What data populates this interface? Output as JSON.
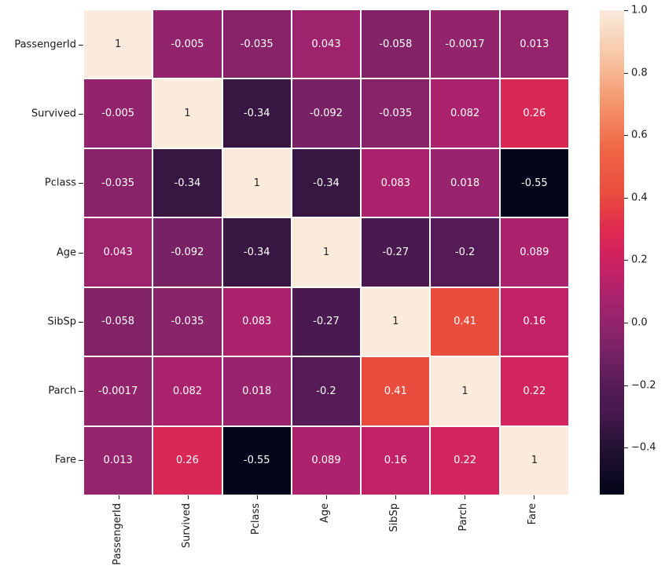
{
  "chart_data": {
    "type": "heatmap",
    "title": "",
    "categories": [
      "PassengerId",
      "Survived",
      "Pclass",
      "Age",
      "SibSp",
      "Parch",
      "Fare"
    ],
    "matrix": [
      [
        1,
        -0.005,
        -0.035,
        0.043,
        -0.058,
        -0.0017,
        0.013
      ],
      [
        -0.005,
        1,
        -0.34,
        -0.092,
        -0.035,
        0.082,
        0.26
      ],
      [
        -0.035,
        -0.34,
        1,
        -0.34,
        0.083,
        0.018,
        -0.55
      ],
      [
        0.043,
        -0.092,
        -0.34,
        1,
        -0.27,
        -0.2,
        0.089
      ],
      [
        -0.058,
        -0.035,
        0.083,
        -0.27,
        1,
        0.41,
        0.16
      ],
      [
        -0.0017,
        0.082,
        0.018,
        -0.2,
        0.41,
        1,
        0.22
      ],
      [
        0.013,
        0.26,
        -0.55,
        0.089,
        0.16,
        0.22,
        1
      ]
    ],
    "cell_labels": [
      [
        "1",
        "-0.005",
        "-0.035",
        "0.043",
        "-0.058",
        "-0.0017",
        "0.013"
      ],
      [
        "-0.005",
        "1",
        "-0.34",
        "-0.092",
        "-0.035",
        "0.082",
        "0.26"
      ],
      [
        "-0.035",
        "-0.34",
        "1",
        "-0.34",
        "0.083",
        "0.018",
        "-0.55"
      ],
      [
        "0.043",
        "-0.092",
        "-0.34",
        "1",
        "-0.27",
        "-0.2",
        "0.089"
      ],
      [
        "-0.058",
        "-0.035",
        "0.083",
        "-0.27",
        "1",
        "0.41",
        "0.16"
      ],
      [
        "-0.0017",
        "0.082",
        "0.018",
        "-0.2",
        "0.41",
        "1",
        "0.22"
      ],
      [
        "0.013",
        "0.26",
        "-0.55",
        "0.089",
        "0.16",
        "0.22",
        "1"
      ]
    ],
    "vmin": -0.55,
    "vmax": 1.0,
    "colorbar_ticks": [
      {
        "value": 1.0,
        "label": "1.0"
      },
      {
        "value": 0.8,
        "label": "0.8"
      },
      {
        "value": 0.6,
        "label": "0.6"
      },
      {
        "value": 0.4,
        "label": "0.4"
      },
      {
        "value": 0.2,
        "label": "0.2"
      },
      {
        "value": 0.0,
        "label": "0.0"
      },
      {
        "value": -0.2,
        "label": "−0.2"
      },
      {
        "value": -0.4,
        "label": "−0.4"
      }
    ],
    "colormap": "rocket",
    "colormap_stops": [
      {
        "v": -0.55,
        "c": "#03051A"
      },
      {
        "v": -0.4,
        "c": "#231233"
      },
      {
        "v": -0.3,
        "c": "#44184C"
      },
      {
        "v": -0.2,
        "c": "#551B57"
      },
      {
        "v": -0.1,
        "c": "#762264"
      },
      {
        "v": 0.0,
        "c": "#92246C"
      },
      {
        "v": 0.1,
        "c": "#B0226C"
      },
      {
        "v": 0.2,
        "c": "#CE2260"
      },
      {
        "v": 0.3,
        "c": "#E02A50"
      },
      {
        "v": 0.41,
        "c": "#EA4C3E"
      },
      {
        "v": 0.55,
        "c": "#F06545"
      },
      {
        "v": 0.7,
        "c": "#F4946B"
      },
      {
        "v": 0.85,
        "c": "#F7C5A4"
      },
      {
        "v": 1.0,
        "c": "#FAEBDD"
      }
    ],
    "legend_position": "right",
    "grid_line_color": "#ffffff",
    "annot_color_dark": "#262626",
    "annot_color_light": "#ffffff",
    "tick_color": "#1a1a1a",
    "background": "#ffffff"
  }
}
